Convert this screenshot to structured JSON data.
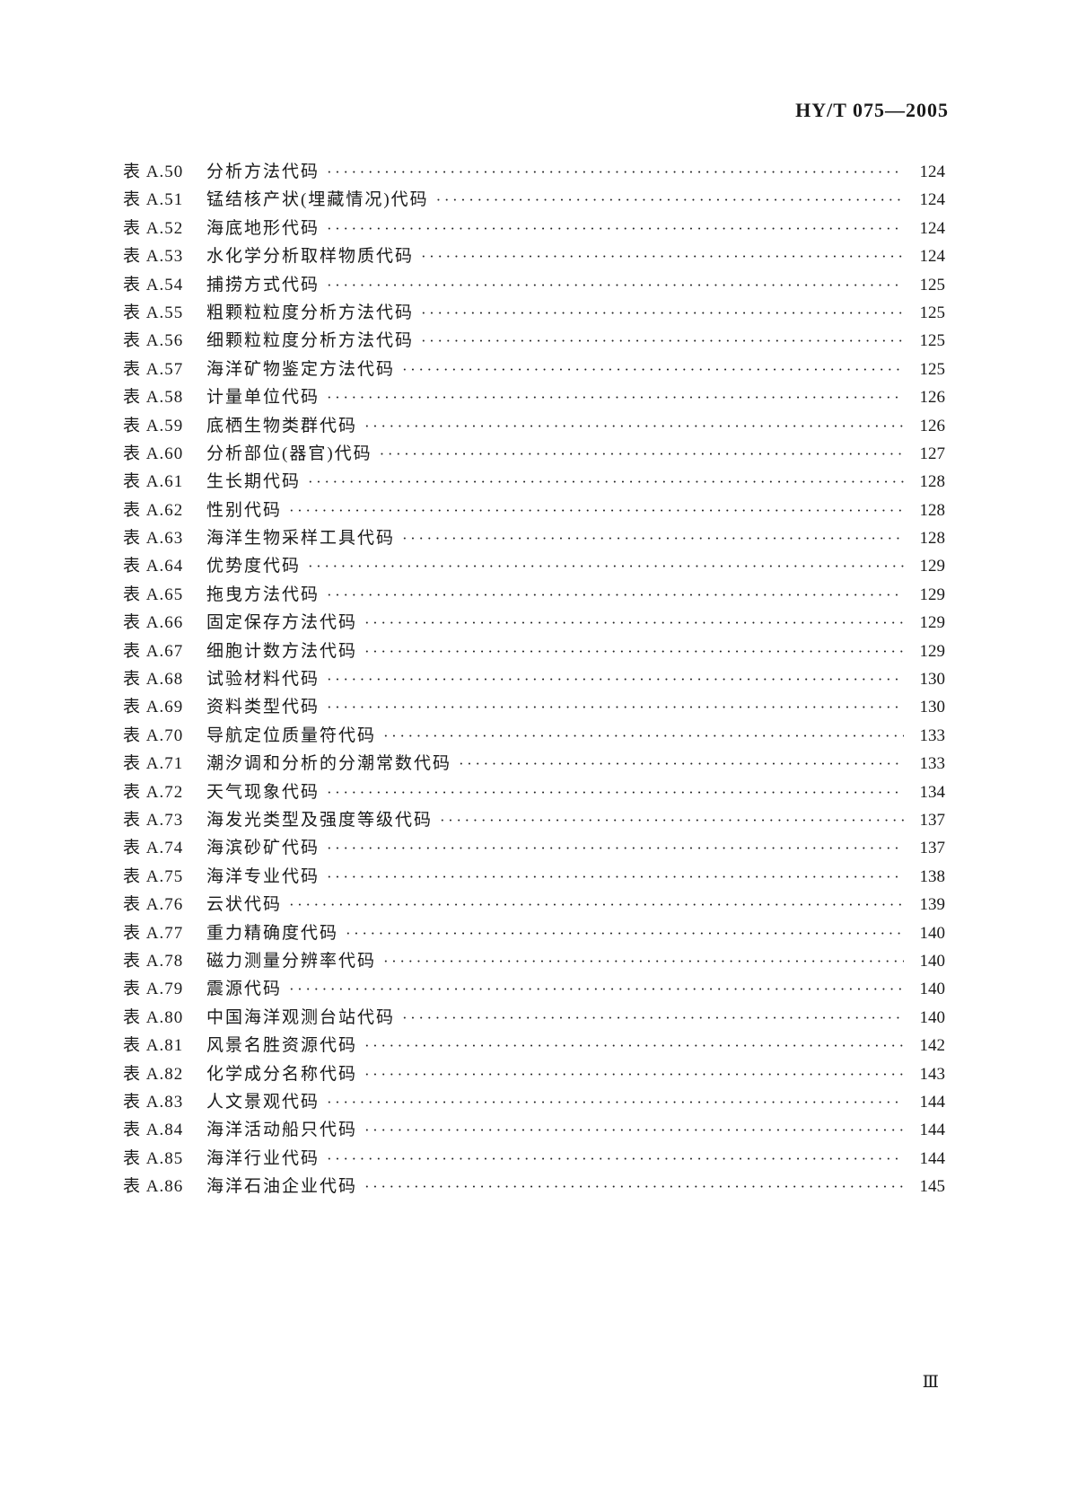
{
  "header": {
    "doc_number": "HY/T 075—2005"
  },
  "toc": {
    "entries": [
      {
        "label": "表 A.50",
        "title": "分析方法代码",
        "page": "124"
      },
      {
        "label": "表 A.51",
        "title": "锰结核产状(埋藏情况)代码",
        "page": "124"
      },
      {
        "label": "表 A.52",
        "title": "海底地形代码",
        "page": "124"
      },
      {
        "label": "表 A.53",
        "title": "水化学分析取样物质代码",
        "page": "124"
      },
      {
        "label": "表 A.54",
        "title": "捕捞方式代码",
        "page": "125"
      },
      {
        "label": "表 A.55",
        "title": "粗颗粒粒度分析方法代码",
        "page": "125"
      },
      {
        "label": "表 A.56",
        "title": "细颗粒粒度分析方法代码",
        "page": "125"
      },
      {
        "label": "表 A.57",
        "title": "海洋矿物鉴定方法代码",
        "page": "125"
      },
      {
        "label": "表 A.58",
        "title": "计量单位代码",
        "page": "126"
      },
      {
        "label": "表 A.59",
        "title": "底栖生物类群代码",
        "page": "126"
      },
      {
        "label": "表 A.60",
        "title": "分析部位(器官)代码",
        "page": "127"
      },
      {
        "label": "表 A.61",
        "title": "生长期代码",
        "page": "128"
      },
      {
        "label": "表 A.62",
        "title": "性别代码",
        "page": "128"
      },
      {
        "label": "表 A.63",
        "title": "海洋生物采样工具代码",
        "page": "128"
      },
      {
        "label": "表 A.64",
        "title": "优势度代码",
        "page": "129"
      },
      {
        "label": "表 A.65",
        "title": "拖曳方法代码",
        "page": "129"
      },
      {
        "label": "表 A.66",
        "title": "固定保存方法代码",
        "page": "129"
      },
      {
        "label": "表 A.67",
        "title": "细胞计数方法代码",
        "page": "129"
      },
      {
        "label": "表 A.68",
        "title": "试验材料代码",
        "page": "130"
      },
      {
        "label": "表 A.69",
        "title": "资料类型代码",
        "page": "130"
      },
      {
        "label": "表 A.70",
        "title": "导航定位质量符代码",
        "page": "133"
      },
      {
        "label": "表 A.71",
        "title": "潮汐调和分析的分潮常数代码",
        "page": "133"
      },
      {
        "label": "表 A.72",
        "title": "天气现象代码",
        "page": "134"
      },
      {
        "label": "表 A.73",
        "title": "海发光类型及强度等级代码",
        "page": "137"
      },
      {
        "label": "表 A.74",
        "title": "海滨砂矿代码",
        "page": "137"
      },
      {
        "label": "表 A.75",
        "title": "海洋专业代码",
        "page": "138"
      },
      {
        "label": "表 A.76",
        "title": "云状代码",
        "page": "139"
      },
      {
        "label": "表 A.77",
        "title": "重力精确度代码",
        "page": "140"
      },
      {
        "label": "表 A.78",
        "title": "磁力测量分辨率代码",
        "page": "140"
      },
      {
        "label": "表 A.79",
        "title": "震源代码",
        "page": "140"
      },
      {
        "label": "表 A.80",
        "title": "中国海洋观测台站代码",
        "page": "140"
      },
      {
        "label": "表 A.81",
        "title": "风景名胜资源代码",
        "page": "142"
      },
      {
        "label": "表 A.82",
        "title": "化学成分名称代码",
        "page": "143"
      },
      {
        "label": "表 A.83",
        "title": "人文景观代码",
        "page": "144"
      },
      {
        "label": "表 A.84",
        "title": "海洋活动船只代码",
        "page": "144"
      },
      {
        "label": "表 A.85",
        "title": "海洋行业代码",
        "page": "144"
      },
      {
        "label": "表 A.86",
        "title": "海洋石油企业代码",
        "page": "145"
      }
    ]
  },
  "footer": {
    "page_number": "Ⅲ"
  }
}
